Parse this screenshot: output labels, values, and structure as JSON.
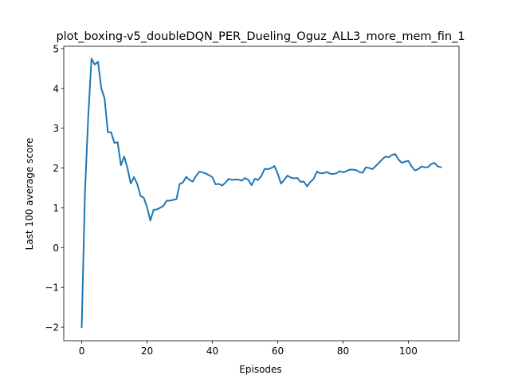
{
  "chart_data": {
    "type": "line",
    "title": "plot_boxing-v5_doubleDQN_PER_Dueling_Oguz_ALL3_more_mem_fin_1",
    "xlabel": "Episodes",
    "ylabel": "Last 100 average score",
    "xlim": [
      -5.5,
      115.5
    ],
    "ylim": [
      -2.34,
      5.06
    ],
    "x_ticks": [
      0,
      20,
      40,
      60,
      80,
      100
    ],
    "y_ticks": [
      -2,
      -1,
      0,
      1,
      2,
      3,
      4,
      5
    ],
    "x_tick_labels": [
      "0",
      "20",
      "40",
      "60",
      "80",
      "100"
    ],
    "y_tick_labels": [
      "−2",
      "−1",
      "0",
      "1",
      "2",
      "3",
      "4",
      "5"
    ],
    "grid": false,
    "color": "#1f77b4",
    "series": [
      {
        "x": [
          0,
          1,
          2,
          3,
          4,
          5,
          6,
          7,
          8,
          9,
          10,
          11,
          12,
          13,
          14,
          15,
          16,
          17,
          18,
          19,
          20,
          21,
          22,
          23,
          24,
          25,
          26,
          27,
          28,
          29,
          30,
          31,
          32,
          33,
          34,
          35,
          36,
          37,
          38,
          39,
          40,
          41,
          42,
          43,
          44,
          45,
          46,
          47,
          48,
          49,
          50,
          51,
          52,
          53,
          54,
          55,
          56,
          57,
          58,
          59,
          60,
          61,
          62,
          63,
          64,
          65,
          66,
          67,
          68,
          69,
          70,
          71,
          72,
          73,
          74,
          75,
          76,
          77,
          78,
          79,
          80,
          81,
          82,
          83,
          84,
          85,
          86,
          87,
          88,
          89,
          90,
          91,
          92,
          93,
          94,
          95,
          96,
          97,
          98,
          99,
          100,
          101,
          102,
          103,
          104,
          105,
          106,
          107,
          108,
          109,
          110
        ],
        "values": [
          -2.0,
          1.4,
          3.3,
          4.75,
          4.6,
          4.67,
          4.0,
          3.75,
          2.9,
          2.9,
          2.63,
          2.65,
          2.07,
          2.29,
          2.0,
          1.61,
          1.77,
          1.6,
          1.3,
          1.25,
          1.02,
          0.68,
          0.95,
          0.96,
          1.0,
          1.05,
          1.18,
          1.18,
          1.2,
          1.22,
          1.6,
          1.64,
          1.78,
          1.7,
          1.66,
          1.8,
          1.91,
          1.89,
          1.86,
          1.82,
          1.77,
          1.59,
          1.6,
          1.56,
          1.63,
          1.73,
          1.7,
          1.71,
          1.71,
          1.68,
          1.75,
          1.7,
          1.57,
          1.73,
          1.7,
          1.8,
          1.98,
          1.97,
          2.0,
          2.05,
          1.86,
          1.61,
          1.7,
          1.81,
          1.76,
          1.74,
          1.75,
          1.65,
          1.66,
          1.54,
          1.65,
          1.73,
          1.91,
          1.87,
          1.87,
          1.9,
          1.86,
          1.85,
          1.87,
          1.92,
          1.89,
          1.92,
          1.96,
          1.96,
          1.95,
          1.9,
          1.88,
          2.02,
          2.0,
          1.97,
          2.05,
          2.13,
          2.22,
          2.29,
          2.27,
          2.33,
          2.35,
          2.21,
          2.13,
          2.16,
          2.18,
          2.04,
          1.94,
          1.97,
          2.04,
          2.02,
          2.02,
          2.1,
          2.13,
          2.04,
          2.02
        ]
      }
    ]
  }
}
